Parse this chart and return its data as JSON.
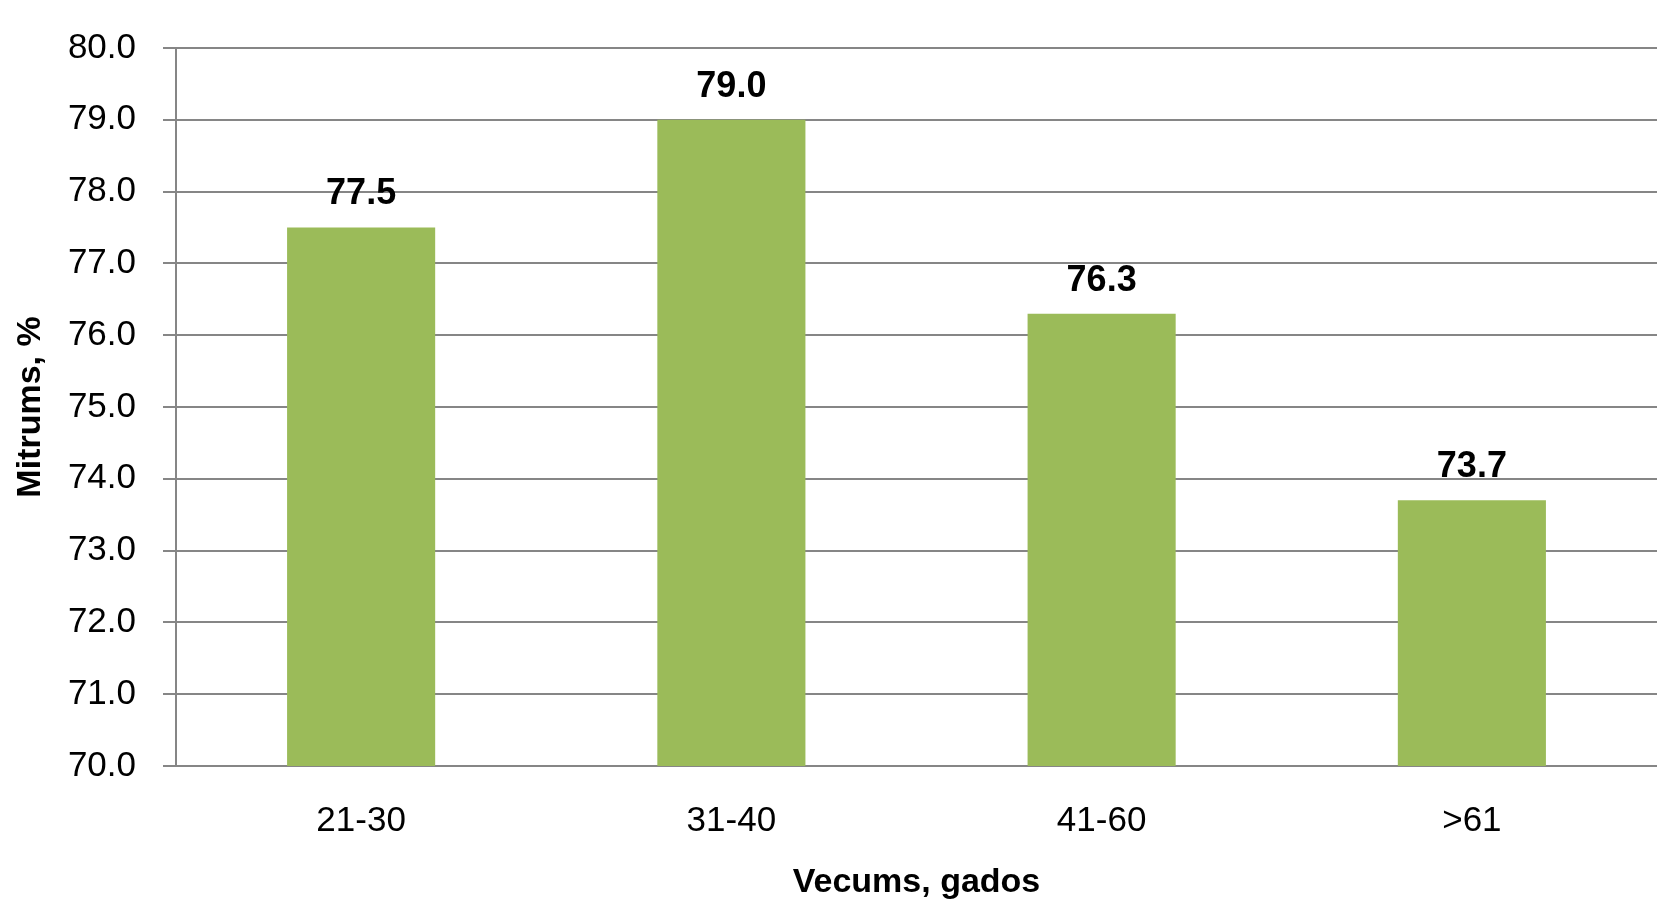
{
  "chart_data": {
    "type": "bar",
    "xlabel": "Vecums, gados",
    "ylabel": "Mitrums, %",
    "categories": [
      "21-30",
      "31-40",
      "41-60",
      ">61"
    ],
    "values": [
      77.5,
      79.0,
      76.3,
      73.7
    ],
    "color": "#9bbb59",
    "value_labels": [
      "77.5",
      "79.0",
      "76.3",
      "73.7"
    ],
    "ylim": [
      70,
      80
    ],
    "yticks": [
      {
        "value": 70,
        "label": "70.0"
      },
      {
        "value": 71,
        "label": "71.0"
      },
      {
        "value": 72,
        "label": "72.0"
      },
      {
        "value": 73,
        "label": "73.0"
      },
      {
        "value": 74,
        "label": "74.0"
      },
      {
        "value": 75,
        "label": "75.0"
      },
      {
        "value": 76,
        "label": "76.0"
      },
      {
        "value": 77,
        "label": "77.0"
      },
      {
        "value": 78,
        "label": "78.0"
      },
      {
        "value": 79,
        "label": "79.0"
      },
      {
        "value": 80,
        "label": "80.0"
      }
    ],
    "grid": "y"
  }
}
